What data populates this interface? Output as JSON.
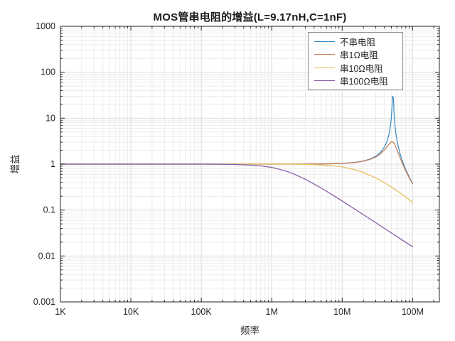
{
  "chart_title": "MOS管串电阻的增益(L=9.17nH,C=1nF)",
  "chart_data": {
    "type": "line",
    "title": "MOS管串电阻的增益(L=9.17nH,C=1nF)",
    "xlabel": "频率",
    "ylabel": "增益",
    "x_scale": "log",
    "y_scale": "log",
    "xlim": [
      1000,
      240000000
    ],
    "ylim": [
      0.001,
      1000
    ],
    "grid": true,
    "minor_grid": true,
    "legend_position": "northeast",
    "x_ticks": {
      "values": [
        1000,
        10000,
        100000,
        1000000,
        10000000,
        100000000
      ],
      "labels": [
        "1K",
        "10K",
        "100K",
        "1M",
        "10M",
        "100M"
      ]
    },
    "y_ticks": {
      "values": [
        1000,
        100,
        10,
        1,
        0.1,
        0.01,
        0.001
      ],
      "labels": [
        "1000",
        "100",
        "10",
        "1",
        "0.1",
        "0.01",
        "0.001"
      ]
    },
    "series": [
      {
        "name": "不串电阻",
        "resistance_ohm": 0,
        "color": "#3a8dc5",
        "points": [
          [
            1000.0,
            1.0
          ],
          [
            3000.0,
            1.0
          ],
          [
            10000.0,
            1.0
          ],
          [
            30000.0,
            1.0
          ],
          [
            100000.0,
            1.0
          ],
          [
            300000.0,
            1.0
          ],
          [
            1000000.0,
            1.0004
          ],
          [
            2000000.0,
            1.0015
          ],
          [
            3000000.0,
            1.0033
          ],
          [
            5000000.0,
            1.0091
          ],
          [
            7000000.0,
            1.0181
          ],
          [
            10000000.0,
            1.0376
          ],
          [
            15000000.0,
            1.0887
          ],
          [
            20000000.0,
            1.169
          ],
          [
            25000000.0,
            1.2925
          ],
          [
            30000000.0,
            1.483
          ],
          [
            35000000.0,
            1.797
          ],
          [
            40000000.0,
            2.377
          ],
          [
            43000000.0,
            3.026
          ],
          [
            45000000.0,
            3.749
          ],
          [
            47000000.0,
            4.998
          ],
          [
            49000000.0,
            7.65
          ],
          [
            50000000.0,
            10.5
          ],
          [
            51000000.0,
            17.2
          ],
          [
            52000000.0,
            30.0
          ],
          [
            53500000.0,
            27.5
          ],
          [
            54500000.0,
            13.2
          ],
          [
            56000000.0,
            7.37
          ],
          [
            58000000.0,
            4.59
          ],
          [
            60000000.0,
            3.293
          ],
          [
            65000000.0,
            1.887
          ],
          [
            70000000.0,
            1.292
          ],
          [
            75000000.0,
            0.965
          ],
          [
            80000000.0,
            0.759
          ],
          [
            90000000.0,
            0.517
          ],
          [
            100000000.0,
            0.3816
          ]
        ]
      },
      {
        "name": "串1Ω电阻",
        "resistance_ohm": 1,
        "color": "#c67b58",
        "points": [
          [
            1000.0,
            1.0
          ],
          [
            10000.0,
            1.0
          ],
          [
            100000.0,
            1.0
          ],
          [
            1000000.0,
            1.0004
          ],
          [
            2000000.0,
            1.0015
          ],
          [
            5000000.0,
            1.0089
          ],
          [
            10000000.0,
            1.035
          ],
          [
            15000000.0,
            1.083
          ],
          [
            20000000.0,
            1.157
          ],
          [
            25000000.0,
            1.2667
          ],
          [
            30000000.0,
            1.4286
          ],
          [
            35000000.0,
            1.671
          ],
          [
            40000000.0,
            2.0405
          ],
          [
            45000000.0,
            2.573
          ],
          [
            50000000.0,
            3.059
          ],
          [
            51000000.0,
            3.071
          ],
          [
            53000000.0,
            3.0
          ],
          [
            55000000.0,
            2.79
          ],
          [
            60000000.0,
            2.066
          ],
          [
            65000000.0,
            1.495
          ],
          [
            70000000.0,
            1.123
          ],
          [
            75000000.0,
            0.878
          ],
          [
            80000000.0,
            0.709
          ],
          [
            90000000.0,
            0.4965
          ],
          [
            100000000.0,
            0.371
          ]
        ]
      },
      {
        "name": "串10Ω电阻",
        "resistance_ohm": 10,
        "color": "#e8bd56",
        "points": [
          [
            1000.0,
            1.0
          ],
          [
            10000.0,
            1.0
          ],
          [
            100000.0,
            1.0
          ],
          [
            1000000.0,
            0.9984
          ],
          [
            2000000.0,
            0.9936
          ],
          [
            3000000.0,
            0.9858
          ],
          [
            5000000.0,
            0.962
          ],
          [
            7000000.0,
            0.9293
          ],
          [
            10000000.0,
            0.869
          ],
          [
            15000000.0,
            0.76
          ],
          [
            20000000.0,
            0.658
          ],
          [
            30000000.0,
            0.4995
          ],
          [
            40000000.0,
            0.3925
          ],
          [
            50000000.0,
            0.318
          ],
          [
            70000000.0,
            0.224
          ],
          [
            100000000.0,
            0.147
          ]
        ]
      },
      {
        "name": "串100Ω电阻",
        "resistance_ohm": 100,
        "color": "#855ca5",
        "points": [
          [
            1000.0,
            1.0
          ],
          [
            10000.0,
            1.0
          ],
          [
            100000.0,
            0.998
          ],
          [
            200000.0,
            0.9922
          ],
          [
            300000.0,
            0.9827
          ],
          [
            500000.0,
            0.954
          ],
          [
            700000.0,
            0.9154
          ],
          [
            1000000.0,
            0.847
          ],
          [
            1500000.0,
            0.7278
          ],
          [
            2000000.0,
            0.623
          ],
          [
            3000000.0,
            0.469
          ],
          [
            5000000.0,
            0.3036
          ],
          [
            7000000.0,
            0.2219
          ],
          [
            10000000.0,
            0.1573
          ],
          [
            15000000.0,
            0.1056
          ],
          [
            20000000.0,
            0.0794
          ],
          [
            30000000.0,
            0.053
          ],
          [
            50000000.0,
            0.0318
          ],
          [
            70000000.0,
            0.0227
          ],
          [
            100000000.0,
            0.0159
          ]
        ]
      }
    ],
    "colors": {
      "axis": "#262626",
      "major_grid": "#dcdcdc",
      "minor_grid": "#ececec",
      "background": "#ffffff"
    }
  }
}
